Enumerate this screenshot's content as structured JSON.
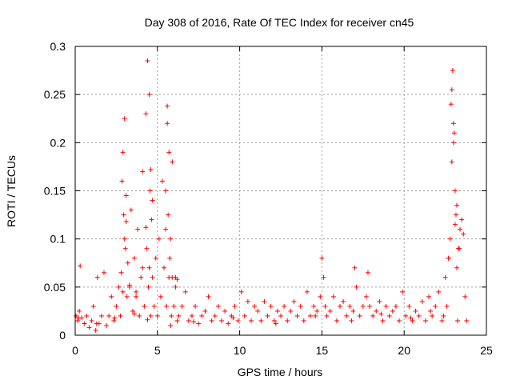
{
  "chart_data": {
    "type": "scatter",
    "title": "Day 308 of 2016, Rate Of TEC Index for receiver cn45",
    "xlabel": "GPS time / hours",
    "ylabel": "ROTI / TECUs",
    "xlim": [
      0,
      25
    ],
    "ylim": [
      0,
      0.3
    ],
    "xticks": [
      0,
      5,
      10,
      15,
      20,
      25
    ],
    "yticks": [
      0,
      0.05,
      0.1,
      0.15,
      0.2,
      0.25,
      0.3
    ],
    "xtick_labels": [
      "0",
      "5",
      "10",
      "15",
      "20",
      "25"
    ],
    "ytick_labels": [
      "0",
      "0.05",
      "0.1",
      "0.15",
      "0.2",
      "0.25",
      "0.3"
    ],
    "grid": true,
    "marker": "+",
    "series": [
      {
        "name": "cn45",
        "color": "#ff0000",
        "x": [
          0.05,
          0.15,
          0.25,
          0.3,
          0.4,
          0.55,
          0.7,
          0.85,
          1.0,
          1.1,
          1.25,
          1.35,
          1.45,
          1.6,
          1.75,
          1.9,
          2.05,
          2.2,
          2.35,
          2.5,
          2.65,
          2.75,
          2.85,
          2.9,
          2.95,
          3.0,
          3.05,
          3.1,
          3.15,
          3.2,
          3.3,
          3.4,
          3.5,
          3.6,
          3.7,
          3.8,
          3.9,
          4.0,
          4.1,
          4.2,
          4.3,
          4.35,
          4.4,
          4.45,
          4.5,
          4.55,
          4.6,
          4.65,
          4.7,
          4.8,
          4.9,
          5.0,
          5.1,
          5.2,
          5.3,
          5.4,
          5.5,
          5.55,
          5.6,
          5.65,
          5.7,
          5.75,
          5.8,
          5.85,
          5.9,
          6.0,
          6.1,
          6.2,
          6.3,
          6.5,
          6.7,
          6.9,
          7.1,
          7.3,
          7.5,
          7.7,
          7.9,
          8.1,
          8.3,
          8.5,
          8.7,
          8.9,
          9.1,
          9.3,
          9.5,
          9.7,
          9.9,
          10.1,
          10.3,
          10.5,
          10.7,
          10.9,
          11.1,
          11.3,
          11.5,
          11.7,
          11.9,
          12.1,
          12.3,
          12.5,
          12.7,
          12.9,
          13.1,
          13.3,
          13.5,
          13.7,
          13.9,
          14.1,
          14.3,
          14.5,
          14.7,
          14.9,
          15.0,
          15.1,
          15.2,
          15.3,
          15.5,
          15.7,
          15.9,
          16.1,
          16.3,
          16.5,
          16.7,
          16.9,
          17.0,
          17.1,
          17.3,
          17.5,
          17.7,
          17.8,
          17.9,
          18.1,
          18.3,
          18.5,
          18.7,
          18.9,
          19.1,
          19.3,
          19.5,
          19.7,
          19.9,
          20.1,
          20.3,
          20.5,
          20.7,
          20.9,
          21.1,
          21.3,
          21.5,
          21.7,
          21.9,
          22.1,
          22.3,
          22.5,
          22.6,
          22.7,
          22.8,
          22.85,
          22.9,
          22.95,
          23.0,
          23.05,
          23.1,
          23.15,
          23.2,
          23.3,
          23.4,
          23.5,
          23.6,
          23.7,
          23.8,
          1.3,
          2.4,
          3.6,
          4.4,
          5.8,
          7.2,
          9.6,
          12.2,
          14.6,
          16.8,
          18.6,
          20.4,
          21.6,
          22.4,
          23.25,
          0.2,
          2.9,
          4.5,
          5.7,
          23.0,
          3.0,
          4.6,
          5.9,
          22.9,
          23.1,
          3.1,
          4.3,
          5.6,
          23.2,
          6.1,
          2.8,
          3.3,
          4.7,
          5.5,
          6.2,
          22.7,
          23.35,
          4.1,
          3.7
        ],
        "y": [
          0.02,
          0.015,
          0.025,
          0.072,
          0.018,
          0.012,
          0.02,
          0.008,
          0.015,
          0.03,
          0.005,
          0.06,
          0.012,
          0.02,
          0.065,
          0.01,
          0.02,
          0.04,
          0.015,
          0.03,
          0.05,
          0.02,
          0.16,
          0.19,
          0.125,
          0.225,
          0.09,
          0.145,
          0.04,
          0.075,
          0.05,
          0.13,
          0.025,
          0.08,
          0.04,
          0.11,
          0.02,
          0.06,
          0.17,
          0.03,
          0.23,
          0.09,
          0.285,
          0.05,
          0.25,
          0.15,
          0.02,
          0.12,
          0.06,
          0.03,
          0.08,
          0.02,
          0.1,
          0.04,
          0.16,
          0.07,
          0.15,
          0.03,
          0.22,
          0.125,
          0.19,
          0.08,
          0.1,
          0.02,
          0.06,
          0.03,
          0.05,
          0.015,
          0.02,
          0.03,
          0.045,
          0.015,
          0.02,
          0.03,
          0.012,
          0.02,
          0.025,
          0.04,
          0.015,
          0.02,
          0.03,
          0.015,
          0.025,
          0.012,
          0.02,
          0.03,
          0.015,
          0.045,
          0.02,
          0.035,
          0.015,
          0.03,
          0.025,
          0.015,
          0.035,
          0.02,
          0.03,
          0.015,
          0.025,
          0.02,
          0.03,
          0.015,
          0.025,
          0.035,
          0.02,
          0.03,
          0.015,
          0.045,
          0.02,
          0.03,
          0.025,
          0.04,
          0.08,
          0.06,
          0.03,
          0.02,
          0.025,
          0.04,
          0.015,
          0.03,
          0.035,
          0.02,
          0.03,
          0.025,
          0.07,
          0.05,
          0.02,
          0.03,
          0.04,
          0.065,
          0.03,
          0.02,
          0.025,
          0.035,
          0.015,
          0.03,
          0.02,
          0.025,
          0.03,
          0.015,
          0.045,
          0.02,
          0.03,
          0.015,
          0.025,
          0.02,
          0.035,
          0.015,
          0.04,
          0.02,
          0.03,
          0.045,
          0.015,
          0.06,
          0.03,
          0.08,
          0.1,
          0.24,
          0.18,
          0.275,
          0.22,
          0.21,
          0.15,
          0.125,
          0.07,
          0.09,
          0.11,
          0.12,
          0.105,
          0.04,
          0.015,
          0.012,
          0.018,
          0.022,
          0.016,
          0.01,
          0.014,
          0.018,
          0.012,
          0.02,
          0.015,
          0.022,
          0.018,
          0.025,
          0.02,
          0.015,
          0.018,
          0.045,
          0.07,
          0.06,
          0.2,
          0.1,
          0.172,
          0.18,
          0.255,
          0.115,
          0.118,
          0.112,
          0.238,
          0.135,
          0.06,
          0.065,
          0.052,
          0.14,
          0.11,
          0.058,
          0.08,
          0.09,
          0.07,
          0.045
        ]
      }
    ]
  }
}
